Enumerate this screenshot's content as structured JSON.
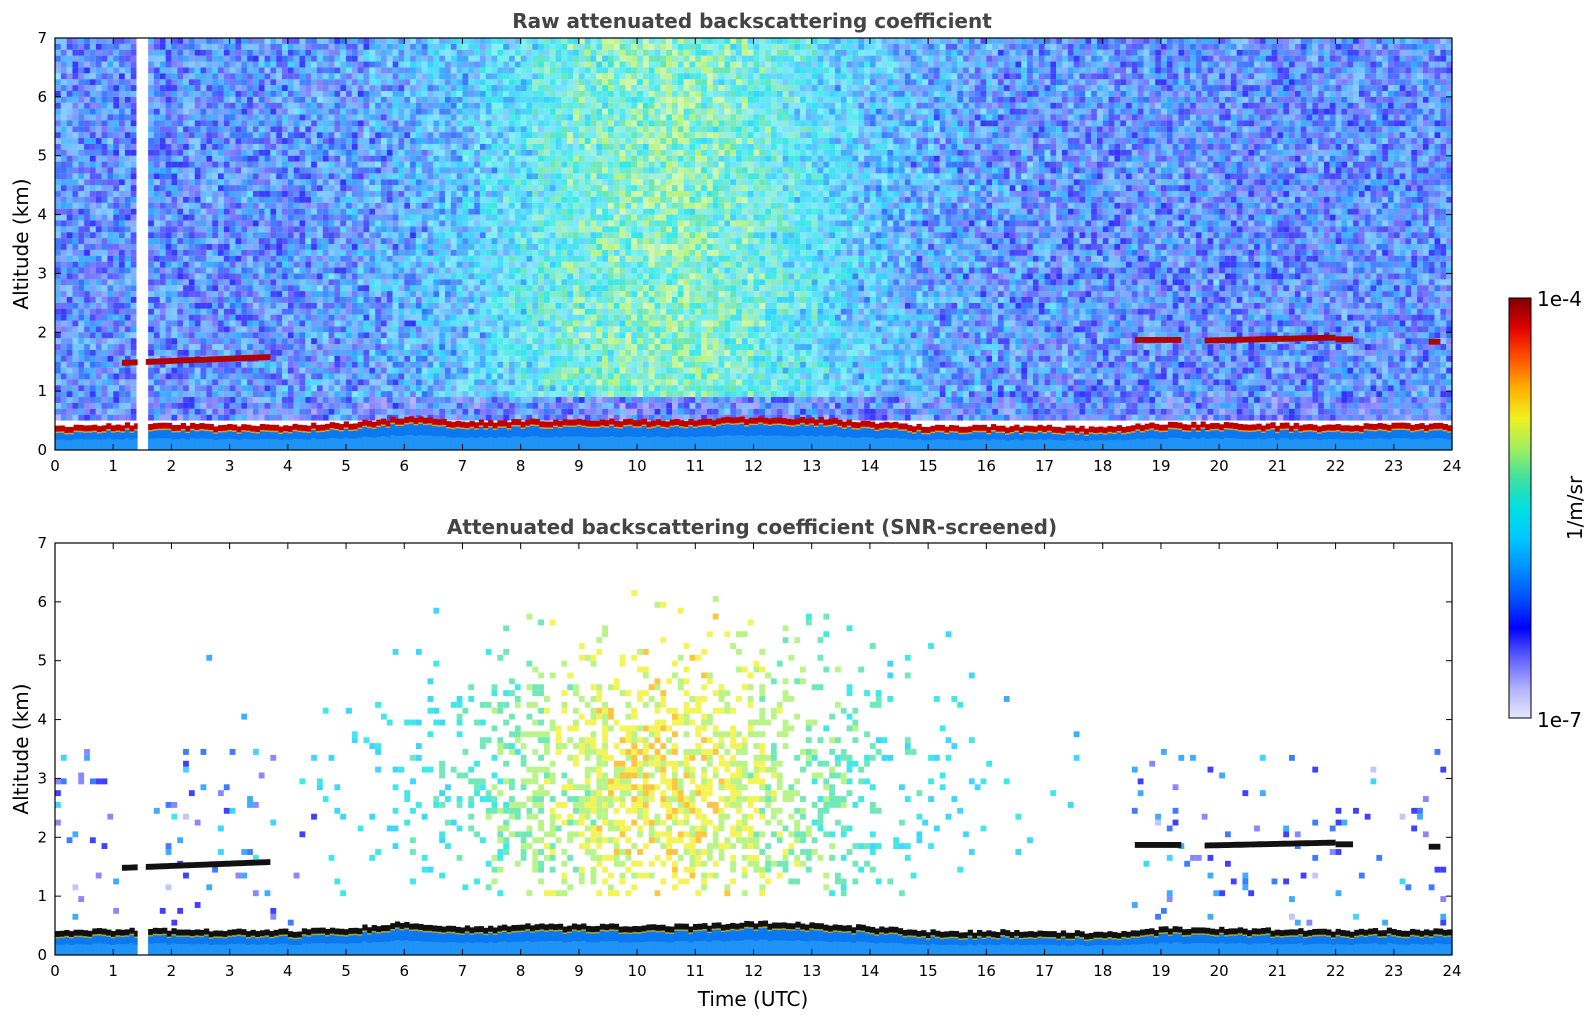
{
  "chart_data": [
    {
      "type": "heatmap",
      "title": "Raw attenuated backscattering coefficient",
      "xlabel": "",
      "ylabel": "Altitude (km)",
      "xlim": [
        0,
        24
      ],
      "ylim": [
        0,
        7
      ],
      "xticks": [
        "0",
        "1",
        "2",
        "3",
        "4",
        "5",
        "6",
        "7",
        "8",
        "9",
        "10",
        "11",
        "12",
        "13",
        "14",
        "15",
        "16",
        "17",
        "18",
        "19",
        "20",
        "21",
        "22",
        "23",
        "24"
      ],
      "yticks": [
        "0",
        "1",
        "2",
        "3",
        "4",
        "5",
        "6",
        "7"
      ],
      "features": {
        "boundary_layer_top_km": [
          [
            0,
            0.35
          ],
          [
            1,
            0.38
          ],
          [
            2,
            0.38
          ],
          [
            3,
            0.36
          ],
          [
            4,
            0.36
          ],
          [
            5,
            0.4
          ],
          [
            6,
            0.5
          ],
          [
            7,
            0.42
          ],
          [
            8,
            0.45
          ],
          [
            9,
            0.45
          ],
          [
            10,
            0.45
          ],
          [
            11,
            0.45
          ],
          [
            12,
            0.5
          ],
          [
            13,
            0.48
          ],
          [
            14,
            0.42
          ],
          [
            15,
            0.35
          ],
          [
            16,
            0.35
          ],
          [
            17,
            0.35
          ],
          [
            18,
            0.32
          ],
          [
            19,
            0.4
          ],
          [
            20,
            0.4
          ],
          [
            21,
            0.38
          ],
          [
            22,
            0.36
          ],
          [
            23,
            0.38
          ],
          [
            24,
            0.38
          ]
        ],
        "cloud_layers": [
          {
            "start": 1.15,
            "end": 3.7,
            "alt_start_km": 1.48,
            "alt_end_km": 1.58
          },
          {
            "start": 18.55,
            "end": 19.35,
            "alt_start_km": 1.87,
            "alt_end_km": 1.87
          },
          {
            "start": 19.75,
            "end": 22.0,
            "alt_start_km": 1.86,
            "alt_end_km": 1.91
          },
          {
            "start": 22.0,
            "end": 22.3,
            "alt_start_km": 1.88,
            "alt_end_km": 1.88
          },
          {
            "start": 23.6,
            "end": 23.8,
            "alt_start_km": 1.84,
            "alt_end_km": 1.84
          }
        ],
        "data_gap": {
          "start": 1.42,
          "end": 1.56
        }
      }
    },
    {
      "type": "heatmap",
      "title": "Attenuated backscattering coefficient (SNR-screened)",
      "xlabel": "Time (UTC)",
      "ylabel": "Altitude (km)",
      "xlim": [
        0,
        24
      ],
      "ylim": [
        0,
        7
      ],
      "xticks": [
        "0",
        "1",
        "2",
        "3",
        "4",
        "5",
        "6",
        "7",
        "8",
        "9",
        "10",
        "11",
        "12",
        "13",
        "14",
        "15",
        "16",
        "17",
        "18",
        "19",
        "20",
        "21",
        "22",
        "23",
        "24"
      ],
      "yticks": [
        "0",
        "1",
        "2",
        "3",
        "4",
        "5",
        "6",
        "7"
      ]
    }
  ],
  "colorbar": {
    "label": "1/m/sr",
    "max_label": "1e-4",
    "min_label": "1e-7",
    "colors": [
      "#e8e8ff",
      "#b0b0ff",
      "#6060ff",
      "#0000ff",
      "#0050ff",
      "#0090ff",
      "#00c8ff",
      "#00e0e0",
      "#40e0a0",
      "#a0f060",
      "#f0f020",
      "#ffb000",
      "#ff5000",
      "#e00000",
      "#800000"
    ]
  }
}
